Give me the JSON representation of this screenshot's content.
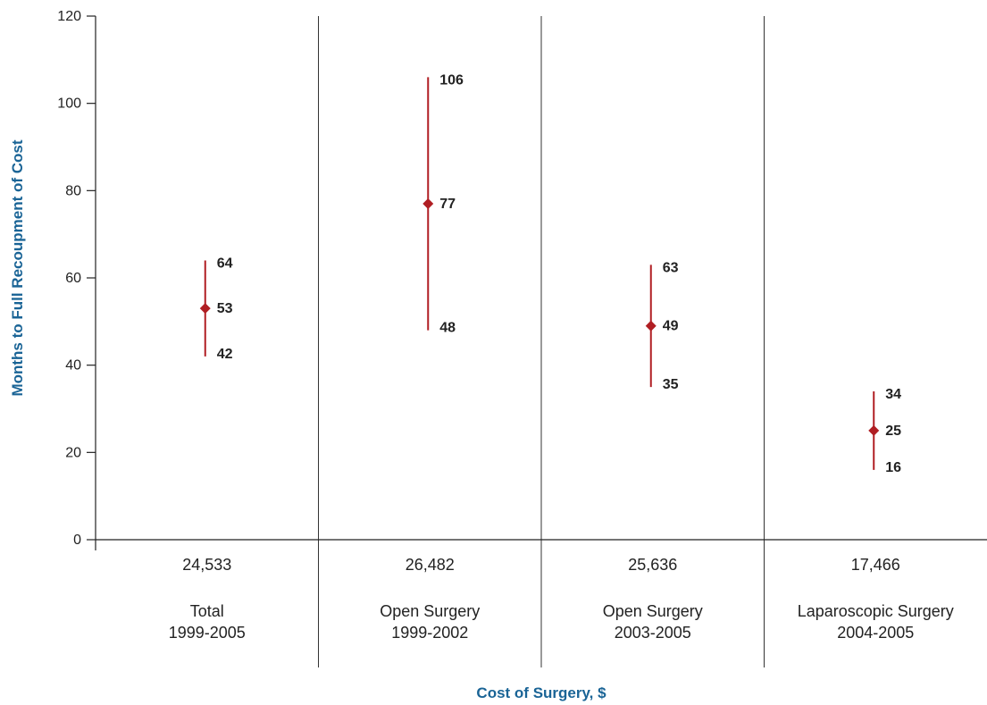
{
  "chart_data": {
    "type": "scatter",
    "title": "",
    "xlabel": "Cost of Surgery, $",
    "ylabel": "Months to Full Recoupment of Cost",
    "ylim": [
      0,
      120
    ],
    "yticks": [
      "0",
      "20",
      "40",
      "60",
      "80",
      "100",
      "120"
    ],
    "grid": false,
    "colors": {
      "marker": "#b01e23",
      "axis_title": "#1a6496",
      "axis": "#222222",
      "divider": "#333333"
    },
    "categories": [
      {
        "cost": "24,533",
        "name": "Total",
        "years": "1999-2005",
        "low": 42,
        "mid": 53,
        "high": 64
      },
      {
        "cost": "26,482",
        "name": "Open Surgery",
        "years": "1999-2002",
        "low": 48,
        "mid": 77,
        "high": 106
      },
      {
        "cost": "25,636",
        "name": "Open Surgery",
        "years": "2003-2005",
        "low": 35,
        "mid": 49,
        "high": 63
      },
      {
        "cost": "17,466",
        "name": "Laparoscopic Surgery",
        "years": "2004-2005",
        "low": 16,
        "mid": 25,
        "high": 34
      }
    ]
  }
}
